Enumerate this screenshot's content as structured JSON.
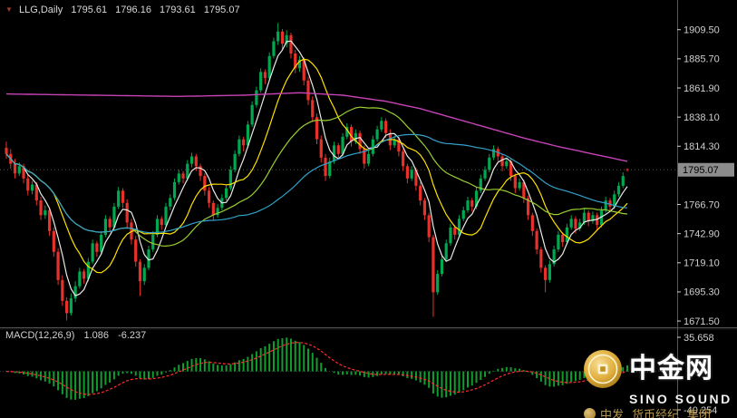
{
  "header": {
    "collapse_icon": "▼",
    "symbol_period": "LLG,Daily",
    "open": "1795.61",
    "high": "1796.16",
    "low": "1793.61",
    "close": "1795.07"
  },
  "price_axis": {
    "labels": [
      "1909.50",
      "1885.70",
      "1861.90",
      "1838.10",
      "1814.30",
      "1790.50",
      "1766.70",
      "1742.90",
      "1719.10",
      "1695.30",
      "1671.50"
    ],
    "current_price": "1795.07"
  },
  "macd_panel": {
    "label": "MACD(12,26,9)",
    "value_main": "1.086",
    "value_signal": "-6.237",
    "axis_top": "35.658",
    "axis_bottom": "-40.254"
  },
  "watermark": {
    "brand_cn": "中金网",
    "brand_en": "SINO SOUND",
    "footer_left": "中发",
    "footer_mid": "货币经纪",
    "footer_right": "集团"
  },
  "colors": {
    "background": "#000000",
    "axis_text": "#cfcfcf",
    "separator": "#565656",
    "bull": "#00a94f",
    "bear": "#e8312a",
    "ma_white": "#e9e9e9",
    "ma_yellow": "#ffe100",
    "ma_green": "#9acd32",
    "ma_cyan": "#33a1c9",
    "ma_magenta": "#c643b5",
    "macd_histogram": "#0f9f2f",
    "macd_signal": "#ff2d2d",
    "price_tag_bg": "#8c8c8c",
    "price_tag_text": "#000000",
    "bid_line": "#6e6e6e"
  },
  "chart_data": {
    "type": "candlestick",
    "symbol": "LLG",
    "timeframe": "Daily",
    "y_axis": {
      "price_min": 1668.6,
      "price_max": 1929.3,
      "label_step": 23.8
    },
    "x_axis": {
      "time_labels_visible": false,
      "bar_count": 145
    },
    "candles": [
      [
        1813,
        1818,
        1804,
        1808
      ],
      [
        1808,
        1812,
        1796,
        1800
      ],
      [
        1800,
        1804,
        1788,
        1792
      ],
      [
        1792,
        1801,
        1790,
        1798
      ],
      [
        1798,
        1800,
        1784,
        1788
      ],
      [
        1788,
        1791,
        1774,
        1778
      ],
      [
        1778,
        1786,
        1775,
        1783
      ],
      [
        1783,
        1785,
        1766,
        1770
      ],
      [
        1770,
        1773,
        1754,
        1758
      ],
      [
        1758,
        1766,
        1755,
        1762
      ],
      [
        1762,
        1764,
        1741,
        1745
      ],
      [
        1745,
        1748,
        1724,
        1728
      ],
      [
        1728,
        1731,
        1701,
        1705
      ],
      [
        1705,
        1709,
        1684,
        1688
      ],
      [
        1688,
        1691,
        1672,
        1678
      ],
      [
        1678,
        1694,
        1676,
        1690
      ],
      [
        1690,
        1704,
        1687,
        1700
      ],
      [
        1700,
        1715,
        1698,
        1712
      ],
      [
        1712,
        1714,
        1702,
        1706
      ],
      [
        1706,
        1723,
        1704,
        1720
      ],
      [
        1720,
        1738,
        1718,
        1735
      ],
      [
        1735,
        1737,
        1724,
        1728
      ],
      [
        1728,
        1745,
        1726,
        1742
      ],
      [
        1742,
        1758,
        1740,
        1755
      ],
      [
        1755,
        1757,
        1744,
        1748
      ],
      [
        1748,
        1768,
        1746,
        1765
      ],
      [
        1765,
        1781,
        1763,
        1778
      ],
      [
        1778,
        1780,
        1764,
        1768
      ],
      [
        1768,
        1771,
        1748,
        1752
      ],
      [
        1752,
        1755,
        1734,
        1738
      ],
      [
        1738,
        1741,
        1716,
        1720
      ],
      [
        1720,
        1722,
        1692,
        1704
      ],
      [
        1704,
        1718,
        1701,
        1715
      ],
      [
        1715,
        1733,
        1713,
        1730
      ],
      [
        1730,
        1745,
        1728,
        1742
      ],
      [
        1742,
        1758,
        1740,
        1755
      ],
      [
        1755,
        1757,
        1746,
        1750
      ],
      [
        1750,
        1768,
        1748,
        1765
      ],
      [
        1765,
        1775,
        1762,
        1772
      ],
      [
        1772,
        1788,
        1770,
        1785
      ],
      [
        1785,
        1795,
        1783,
        1792
      ],
      [
        1792,
        1794,
        1784,
        1788
      ],
      [
        1788,
        1803,
        1786,
        1800
      ],
      [
        1800,
        1809,
        1797,
        1806
      ],
      [
        1806,
        1808,
        1794,
        1798
      ],
      [
        1798,
        1800,
        1786,
        1790
      ],
      [
        1790,
        1792,
        1774,
        1778
      ],
      [
        1778,
        1781,
        1764,
        1768
      ],
      [
        1768,
        1770,
        1754,
        1758
      ],
      [
        1758,
        1767,
        1756,
        1764
      ],
      [
        1764,
        1775,
        1762,
        1772
      ],
      [
        1772,
        1783,
        1770,
        1780
      ],
      [
        1780,
        1798,
        1778,
        1795
      ],
      [
        1795,
        1811,
        1793,
        1808
      ],
      [
        1808,
        1823,
        1806,
        1820
      ],
      [
        1820,
        1822,
        1810,
        1815
      ],
      [
        1815,
        1835,
        1813,
        1832
      ],
      [
        1832,
        1851,
        1830,
        1848
      ],
      [
        1848,
        1863,
        1846,
        1860
      ],
      [
        1860,
        1878,
        1858,
        1875
      ],
      [
        1875,
        1877,
        1865,
        1870
      ],
      [
        1870,
        1891,
        1868,
        1888
      ],
      [
        1888,
        1903,
        1886,
        1900
      ],
      [
        1900,
        1915,
        1897,
        1908
      ],
      [
        1908,
        1910,
        1893,
        1898
      ],
      [
        1898,
        1909,
        1895,
        1905
      ],
      [
        1905,
        1907,
        1886,
        1890
      ],
      [
        1890,
        1893,
        1874,
        1878
      ],
      [
        1878,
        1888,
        1875,
        1885
      ],
      [
        1885,
        1887,
        1864,
        1868
      ],
      [
        1868,
        1871,
        1848,
        1852
      ],
      [
        1852,
        1855,
        1834,
        1838
      ],
      [
        1838,
        1841,
        1816,
        1820
      ],
      [
        1820,
        1823,
        1801,
        1805
      ],
      [
        1805,
        1808,
        1786,
        1790
      ],
      [
        1790,
        1805,
        1788,
        1802
      ],
      [
        1802,
        1818,
        1800,
        1815
      ],
      [
        1815,
        1817,
        1804,
        1808
      ],
      [
        1808,
        1825,
        1806,
        1822
      ],
      [
        1822,
        1833,
        1820,
        1830
      ],
      [
        1830,
        1832,
        1814,
        1818
      ],
      [
        1818,
        1828,
        1816,
        1825
      ],
      [
        1825,
        1827,
        1808,
        1812
      ],
      [
        1812,
        1815,
        1796,
        1800
      ],
      [
        1800,
        1811,
        1798,
        1808
      ],
      [
        1808,
        1823,
        1806,
        1820
      ],
      [
        1820,
        1831,
        1818,
        1828
      ],
      [
        1828,
        1838,
        1826,
        1835
      ],
      [
        1835,
        1837,
        1821,
        1825
      ],
      [
        1825,
        1828,
        1811,
        1815
      ],
      [
        1815,
        1823,
        1813,
        1820
      ],
      [
        1820,
        1822,
        1806,
        1810
      ],
      [
        1810,
        1812,
        1794,
        1798
      ],
      [
        1798,
        1800,
        1784,
        1788
      ],
      [
        1788,
        1798,
        1786,
        1795
      ],
      [
        1795,
        1797,
        1778,
        1782
      ],
      [
        1782,
        1785,
        1766,
        1770
      ],
      [
        1770,
        1772,
        1754,
        1758
      ],
      [
        1758,
        1760,
        1736,
        1740
      ],
      [
        1740,
        1742,
        1675,
        1695
      ],
      [
        1695,
        1713,
        1693,
        1710
      ],
      [
        1710,
        1725,
        1708,
        1722
      ],
      [
        1722,
        1738,
        1720,
        1735
      ],
      [
        1735,
        1751,
        1733,
        1748
      ],
      [
        1748,
        1750,
        1738,
        1742
      ],
      [
        1742,
        1758,
        1740,
        1755
      ],
      [
        1755,
        1765,
        1753,
        1762
      ],
      [
        1762,
        1773,
        1760,
        1770
      ],
      [
        1770,
        1772,
        1761,
        1765
      ],
      [
        1765,
        1781,
        1763,
        1778
      ],
      [
        1778,
        1791,
        1776,
        1788
      ],
      [
        1788,
        1798,
        1786,
        1795
      ],
      [
        1795,
        1808,
        1793,
        1805
      ],
      [
        1805,
        1815,
        1803,
        1812
      ],
      [
        1812,
        1814,
        1802,
        1806
      ],
      [
        1806,
        1808,
        1794,
        1798
      ],
      [
        1798,
        1805,
        1796,
        1802
      ],
      [
        1802,
        1804,
        1786,
        1790
      ],
      [
        1790,
        1792,
        1776,
        1780
      ],
      [
        1780,
        1788,
        1778,
        1785
      ],
      [
        1785,
        1787,
        1768,
        1772
      ],
      [
        1772,
        1774,
        1754,
        1758
      ],
      [
        1758,
        1760,
        1741,
        1745
      ],
      [
        1745,
        1747,
        1726,
        1730
      ],
      [
        1730,
        1732,
        1711,
        1715
      ],
      [
        1715,
        1717,
        1695,
        1705
      ],
      [
        1705,
        1721,
        1703,
        1718
      ],
      [
        1718,
        1733,
        1716,
        1730
      ],
      [
        1730,
        1745,
        1728,
        1742
      ],
      [
        1742,
        1744,
        1732,
        1736
      ],
      [
        1736,
        1751,
        1734,
        1748
      ],
      [
        1748,
        1758,
        1746,
        1755
      ],
      [
        1755,
        1757,
        1743,
        1747
      ],
      [
        1747,
        1755,
        1745,
        1752
      ],
      [
        1752,
        1763,
        1750,
        1760
      ],
      [
        1760,
        1762,
        1749,
        1753
      ],
      [
        1753,
        1761,
        1751,
        1758
      ],
      [
        1758,
        1760,
        1746,
        1750
      ],
      [
        1750,
        1765,
        1748,
        1762
      ],
      [
        1762,
        1773,
        1760,
        1770
      ],
      [
        1770,
        1772,
        1761,
        1765
      ],
      [
        1765,
        1778,
        1763,
        1775
      ],
      [
        1775,
        1785,
        1773,
        1782
      ],
      [
        1782,
        1793,
        1780,
        1790
      ],
      [
        1795.61,
        1796.16,
        1793.61,
        1795.07
      ]
    ],
    "overlays": [
      {
        "name": "ma-fast",
        "type": "sma",
        "period": 5,
        "color_key": "ma_white"
      },
      {
        "name": "ma-medium",
        "type": "sma",
        "period": 12,
        "color_key": "ma_yellow"
      },
      {
        "name": "ma-slow",
        "type": "sma",
        "period": 30,
        "color_key": "ma_green"
      },
      {
        "name": "ma-slower",
        "type": "sma",
        "period": 55,
        "color_key": "ma_cyan"
      },
      {
        "name": "ma-slowest",
        "type": "points",
        "color_key": "ma_magenta",
        "points": [
          [
            0,
            1857
          ],
          [
            20,
            1856
          ],
          [
            40,
            1855
          ],
          [
            55,
            1856
          ],
          [
            68,
            1858
          ],
          [
            78,
            1856
          ],
          [
            88,
            1851
          ],
          [
            96,
            1845
          ],
          [
            104,
            1837
          ],
          [
            112,
            1829
          ],
          [
            120,
            1821
          ],
          [
            128,
            1814
          ],
          [
            136,
            1808
          ],
          [
            144,
            1802
          ]
        ]
      }
    ],
    "indicator": {
      "name": "MACD",
      "params": [
        12,
        26,
        9
      ],
      "current_macd": 1.086,
      "current_signal": -6.237,
      "pane_max": 35.658,
      "pane_min": -40.254
    }
  }
}
